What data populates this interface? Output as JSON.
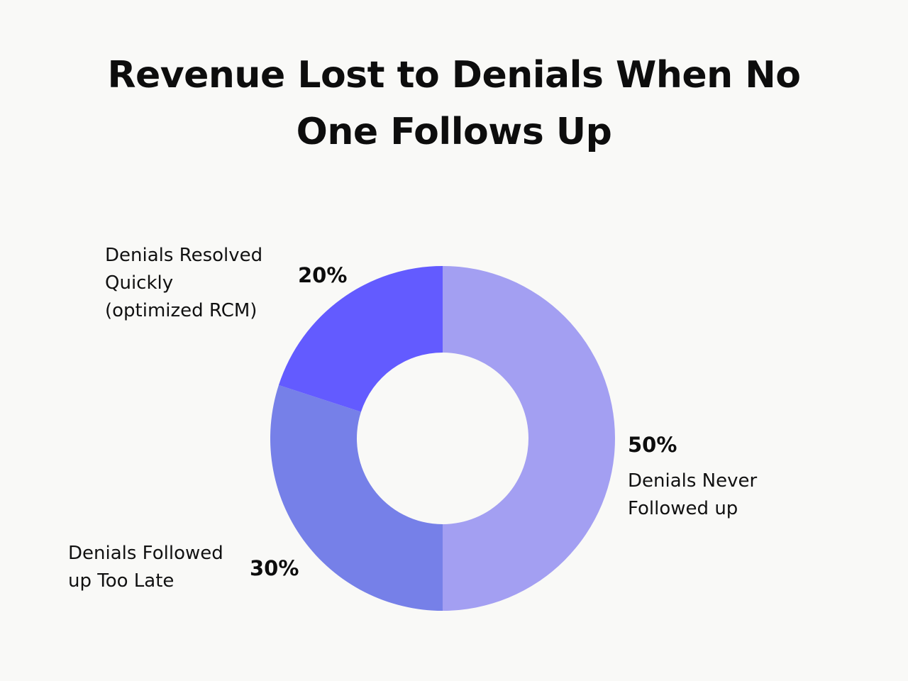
{
  "chart_data": {
    "type": "pie",
    "donut": true,
    "title": "Revenue Lost to Denials When No One Follows Up",
    "categories": [
      "Denials Never Followed up",
      "Denials Followed up Too Late",
      "Denials Resolved Quickly (optimized RCM)"
    ],
    "values": [
      50,
      30,
      20
    ],
    "value_labels": [
      "50%",
      "30%",
      "20%"
    ],
    "colors": [
      "#a39ff2",
      "#7680e8",
      "#635bff"
    ]
  }
}
